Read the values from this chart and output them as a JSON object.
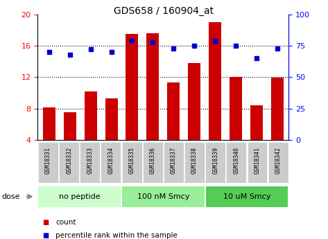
{
  "title": "GDS658 / 160904_at",
  "samples": [
    "GSM18331",
    "GSM18332",
    "GSM18333",
    "GSM18334",
    "GSM18335",
    "GSM18336",
    "GSM18337",
    "GSM18338",
    "GSM18339",
    "GSM18340",
    "GSM18341",
    "GSM18342"
  ],
  "bar_values": [
    8.1,
    7.5,
    10.2,
    9.3,
    17.5,
    17.6,
    11.3,
    13.8,
    19.0,
    12.0,
    8.4,
    11.9
  ],
  "percentile_values": [
    70,
    68,
    72,
    70,
    79,
    78,
    73,
    75,
    79,
    75,
    65,
    73
  ],
  "bar_color": "#cc0000",
  "percentile_color": "#0000cc",
  "ylim_left": [
    4,
    20
  ],
  "ylim_right": [
    0,
    100
  ],
  "yticks_left": [
    4,
    8,
    12,
    16,
    20
  ],
  "yticks_right": [
    0,
    25,
    50,
    75,
    100
  ],
  "groups": [
    {
      "label": "no peptide",
      "start": 0,
      "end": 4,
      "color": "#ccffcc"
    },
    {
      "label": "100 nM Smcy",
      "start": 4,
      "end": 8,
      "color": "#99ee99"
    },
    {
      "label": "10 uM Smcy",
      "start": 8,
      "end": 12,
      "color": "#55cc55"
    }
  ],
  "dose_label": "dose",
  "legend_bar_label": "count",
  "legend_pct_label": "percentile rank within the sample",
  "bg_color": "#ffffff",
  "tick_bg_color": "#cccccc",
  "grid_yticks": [
    8,
    12,
    16
  ]
}
